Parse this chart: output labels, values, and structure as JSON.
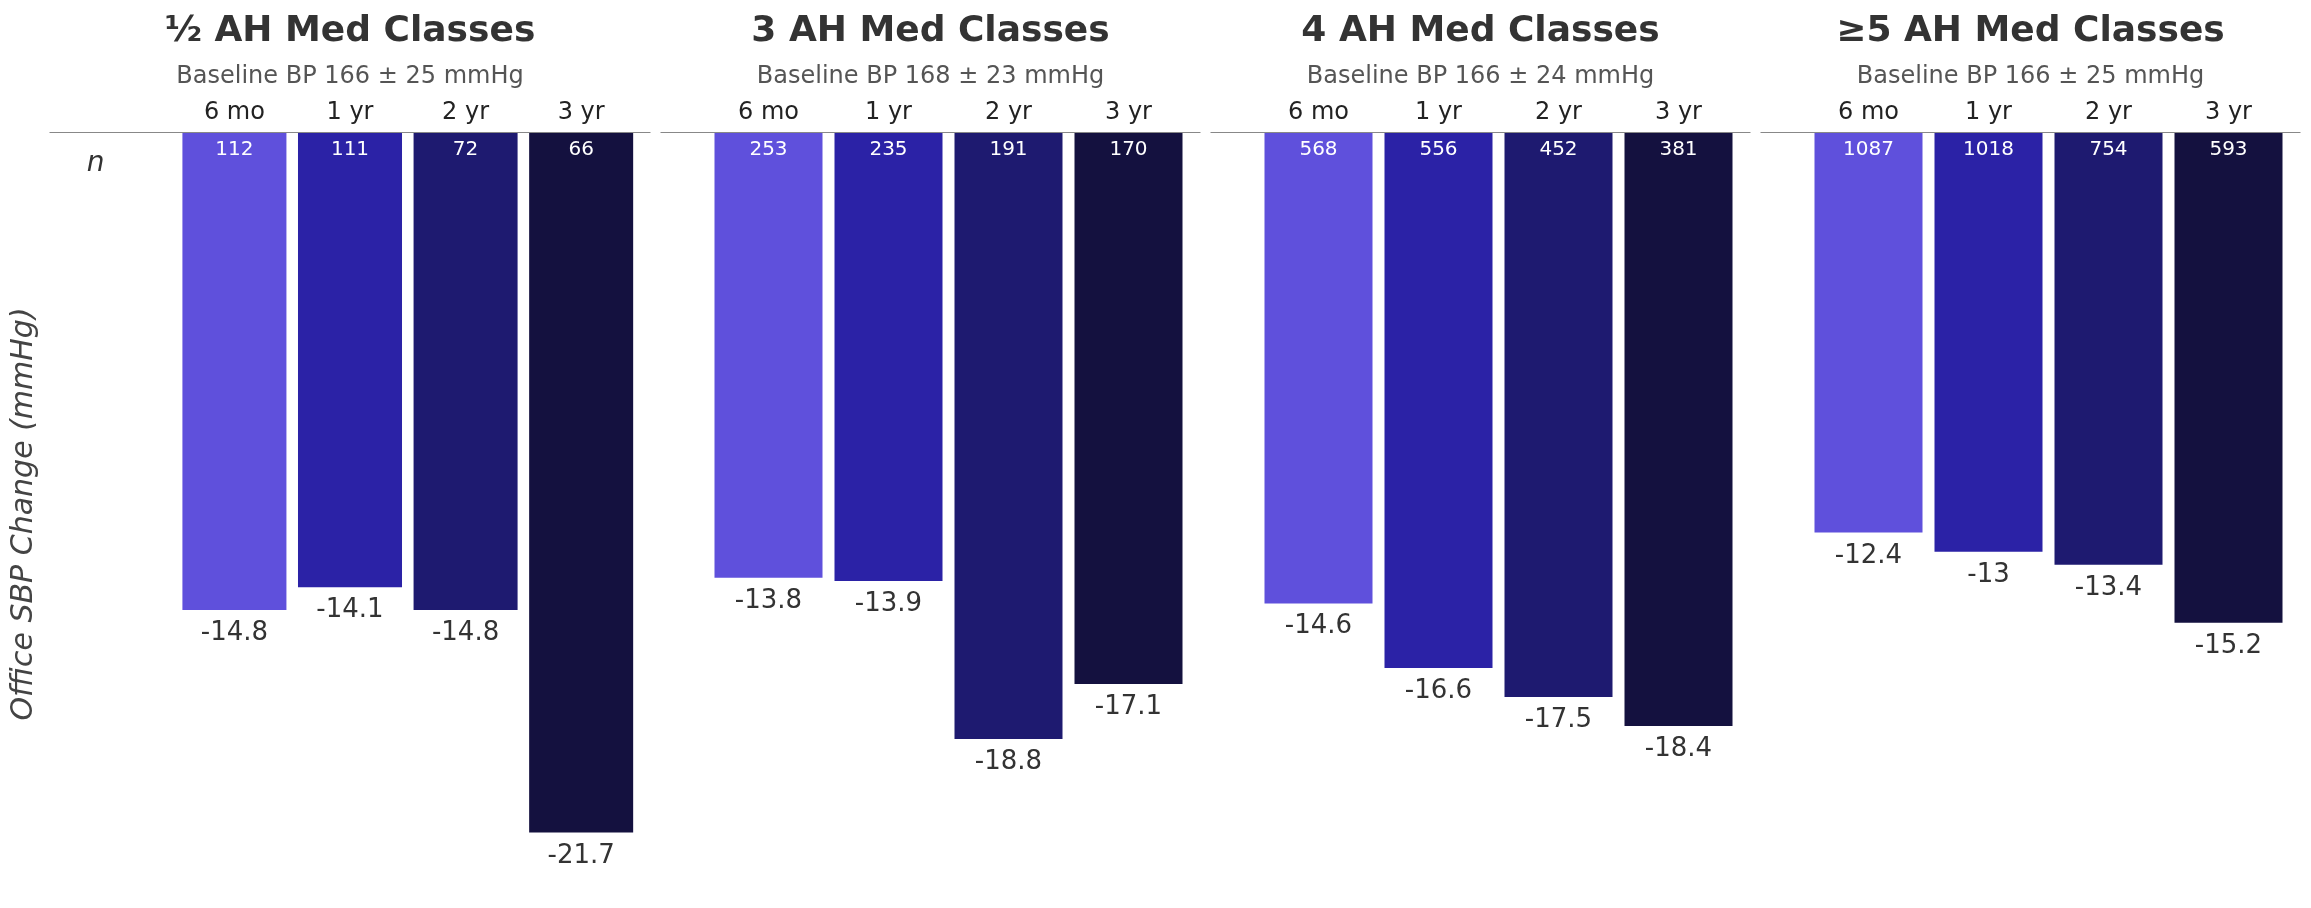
{
  "chart_data": [
    {
      "type": "bar",
      "title": "½ AH Med Classes",
      "subtitle": "Baseline BP 166 ± 25 mmHg",
      "ylabel": "Office SBP Change (mmHg)",
      "categories": [
        "6 mo",
        "1 yr",
        "2 yr",
        "3 yr"
      ],
      "values": [
        -14.8,
        -14.1,
        -14.8,
        -21.7
      ],
      "colors": [
        "#5f50dc",
        "#2b22a6",
        "#1e1a70",
        "#14113f"
      ],
      "tick_labels": "x",
      "data_labels": true,
      "annotations": [
        "n",
        {
          "text": "112",
          "x": "6 mo",
          "y": 0
        },
        {
          "text": "111",
          "x": "1 yr",
          "y": 0
        },
        {
          "text": "72",
          "x": "2 yr",
          "y": 0
        },
        {
          "text": "66",
          "x": "3 yr",
          "y": 0
        }
      ]
    },
    {
      "type": "bar",
      "title": "3 AH Med Classes",
      "subtitle": "Baseline BP 168 ± 23 mmHg",
      "categories": [
        "6 mo",
        "1 yr",
        "2 yr",
        "3 yr"
      ],
      "values": [
        -13.8,
        -13.9,
        -18.8,
        -17.1
      ],
      "colors": [
        "#5f50dc",
        "#2b22a6",
        "#1e1a70",
        "#14113f"
      ],
      "tick_labels": "x",
      "data_labels": true,
      "annotations": [
        {
          "text": "253",
          "x": "6 mo",
          "y": 0
        },
        {
          "text": "235",
          "x": "1 yr",
          "y": 0
        },
        {
          "text": "191",
          "x": "2 yr",
          "y": 0
        },
        {
          "text": "170",
          "x": "3 yr",
          "y": 0
        }
      ]
    },
    {
      "type": "bar",
      "title": "4 AH Med Classes",
      "subtitle": "Baseline BP 166 ± 24 mmHg",
      "categories": [
        "6 mo",
        "1 yr",
        "2 yr",
        "3 yr"
      ],
      "values": [
        -14.6,
        -16.6,
        -17.5,
        -18.4
      ],
      "colors": [
        "#5f50dc",
        "#2b22a6",
        "#1e1a70",
        "#14113f"
      ],
      "tick_labels": "x",
      "data_labels": true,
      "annotations": [
        {
          "text": "568",
          "x": "6 mo",
          "y": 0
        },
        {
          "text": "556",
          "x": "1 yr",
          "y": 0
        },
        {
          "text": "452",
          "x": "2 yr",
          "y": 0
        },
        {
          "text": "381",
          "x": "3 yr",
          "y": 0
        }
      ]
    },
    {
      "type": "bar",
      "title": "≥5 AH Med Classes",
      "subtitle": "Baseline BP 166 ± 25 mmHg",
      "categories": [
        "6 mo",
        "1 yr",
        "2 yr",
        "3 yr"
      ],
      "values": [
        -12.4,
        -13,
        -13.4,
        -15.2
      ],
      "colors": [
        "#5f50dc",
        "#2b22a6",
        "#1e1a70",
        "#14113f"
      ],
      "tick_labels": "x",
      "data_labels": true,
      "annotations": [
        {
          "text": "1087",
          "x": "6 mo",
          "y": 0
        },
        {
          "text": "1018",
          "x": "1 yr",
          "y": 0
        },
        {
          "text": "754",
          "x": "2 yr",
          "y": 0
        },
        {
          "text": "593",
          "x": "3 yr",
          "y": 0
        }
      ]
    }
  ]
}
